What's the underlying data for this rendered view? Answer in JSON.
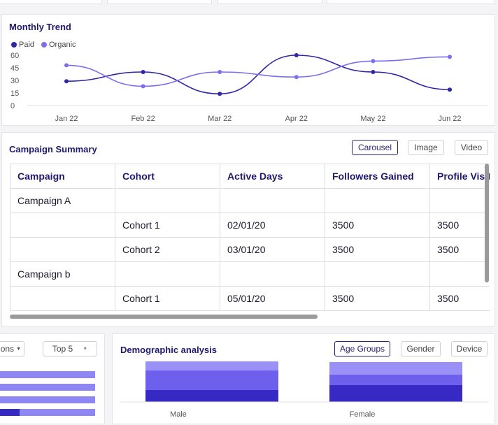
{
  "colors": {
    "paid": "#2f26a8",
    "organic": "#7b6ef0",
    "bar_light": "#9a90f6",
    "bar_mid": "#6c60ec",
    "bar_dark": "#3629c4"
  },
  "trend": {
    "title": "Monthly Trend",
    "legend": [
      "Paid",
      "Organic"
    ],
    "chart_data": {
      "type": "line",
      "x": [
        "Jan 22",
        "Feb 22",
        "Mar 22",
        "Apr 22",
        "May 22",
        "Jun 22"
      ],
      "series": [
        {
          "name": "Paid",
          "values": [
            29,
            40,
            14,
            60,
            40,
            19
          ]
        },
        {
          "name": "Organic",
          "values": [
            48,
            23,
            40,
            34,
            53,
            58
          ]
        }
      ],
      "yticks": [
        "60",
        "45",
        "30",
        "15",
        "0"
      ],
      "ylim": [
        0,
        60
      ]
    }
  },
  "campaign": {
    "title": "Campaign Summary",
    "toggles": [
      "Carousel",
      "Image",
      "Video"
    ],
    "headers": [
      "Campaign",
      "Cohort",
      "Active Days",
      "Followers Gained",
      "Profile Visits"
    ],
    "rows": [
      [
        "Campaign A",
        "",
        "",
        "",
        ""
      ],
      [
        "",
        "Cohort 1",
        "02/01/20",
        "3500",
        "3500"
      ],
      [
        "",
        "Cohort 2",
        "03/01/20",
        "3500",
        "3500"
      ],
      [
        "Campaign b",
        "",
        "",
        "",
        ""
      ],
      [
        "",
        "Cohort 1",
        "05/01/20",
        "3500",
        "3500"
      ]
    ]
  },
  "left_panel": {
    "select_label": "ons",
    "top_label": "Top 5",
    "bars": [
      1.0,
      1.0,
      1.0,
      1.0
    ]
  },
  "demo": {
    "title": "Demographic analysis",
    "toggles": [
      "Age Groups",
      "Gender",
      "Device"
    ],
    "chart_data": {
      "type": "bar",
      "categories": [
        "Male",
        "Female"
      ],
      "series": [
        {
          "values": [
            17,
            24
          ]
        },
        {
          "values": [
            28,
            15
          ]
        },
        {
          "values": [
            13,
            18
          ]
        }
      ]
    }
  }
}
